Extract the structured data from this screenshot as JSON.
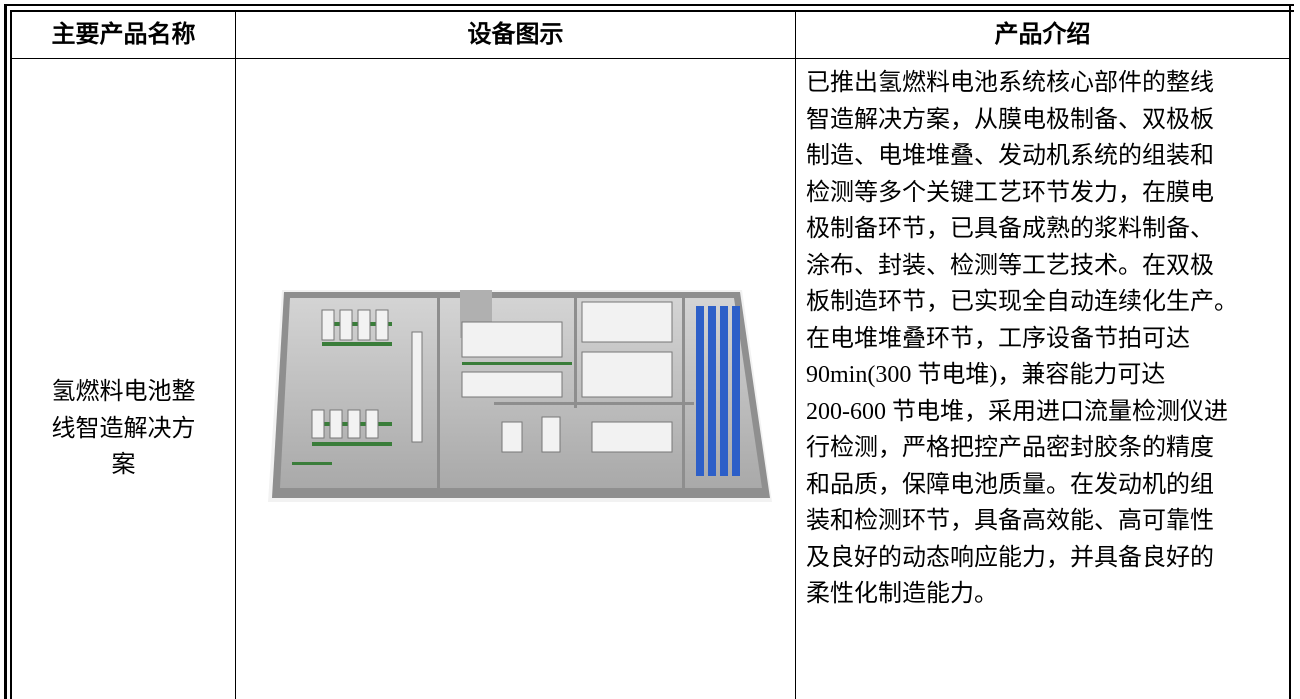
{
  "table": {
    "header": [
      "主要产品名称",
      "设备图示",
      "产品介绍"
    ],
    "rows": [
      {
        "name_lines": [
          "氢燃料电池整",
          "线智造解决方",
          "案"
        ],
        "intro_lines": [
          "已推出氢燃料电池系统核心部件的整线",
          "智造解决方案，从膜电极制备、双极板",
          "制造、电堆堆叠、发动机系统的组装和",
          "检测等多个关键工艺环节发力，在膜电",
          "极制备环节，已具备成熟的浆料制备、",
          "涂布、封装、检测等工艺技术。在双极",
          "板制造环节，已实现全自动连续化生产。",
          "在电堆堆叠环节，工序设备节拍可达",
          "90min(300 节电堆)，兼容能力可达",
          "200-600 节电堆，采用进口流量检测仪进",
          "行检测，严格把控产品密封胶条的精度",
          "和品质，保障电池质量。在发动机的组",
          "装和检测环节，具备高效能、高可靠性",
          "及良好的动态响应能力，并具备良好的",
          "柔性化制造能力。"
        ]
      }
    ]
  }
}
